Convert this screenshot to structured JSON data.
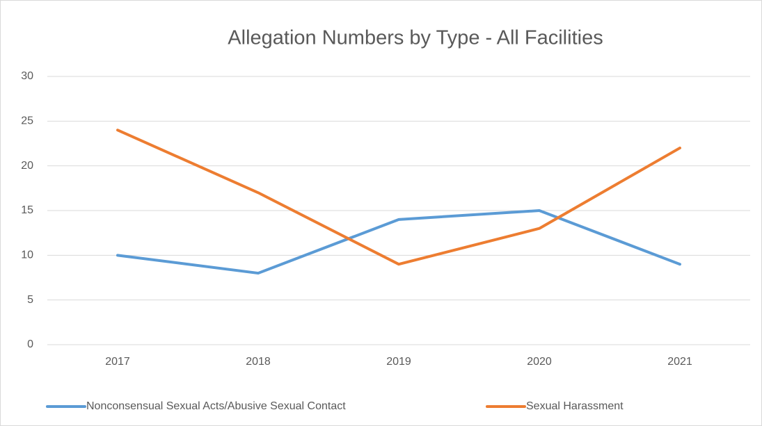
{
  "chart_data": {
    "type": "line",
    "title": "Allegation Numbers by Type - All Facilities",
    "categories": [
      "2017",
      "2018",
      "2019",
      "2020",
      "2021"
    ],
    "series": [
      {
        "name": "Nonconsensual Sexual Acts/Abusive Sexual Contact",
        "color": "#5b9bd5",
        "values": [
          10,
          8,
          14,
          15,
          9
        ]
      },
      {
        "name": "Sexual Harassment",
        "color": "#ed7d31",
        "values": [
          24,
          17,
          9,
          13,
          22
        ]
      }
    ],
    "ylim": [
      0,
      30
    ],
    "yticks": [
      0,
      5,
      10,
      15,
      20,
      25,
      30
    ],
    "grid": true,
    "legend": "bottom"
  }
}
